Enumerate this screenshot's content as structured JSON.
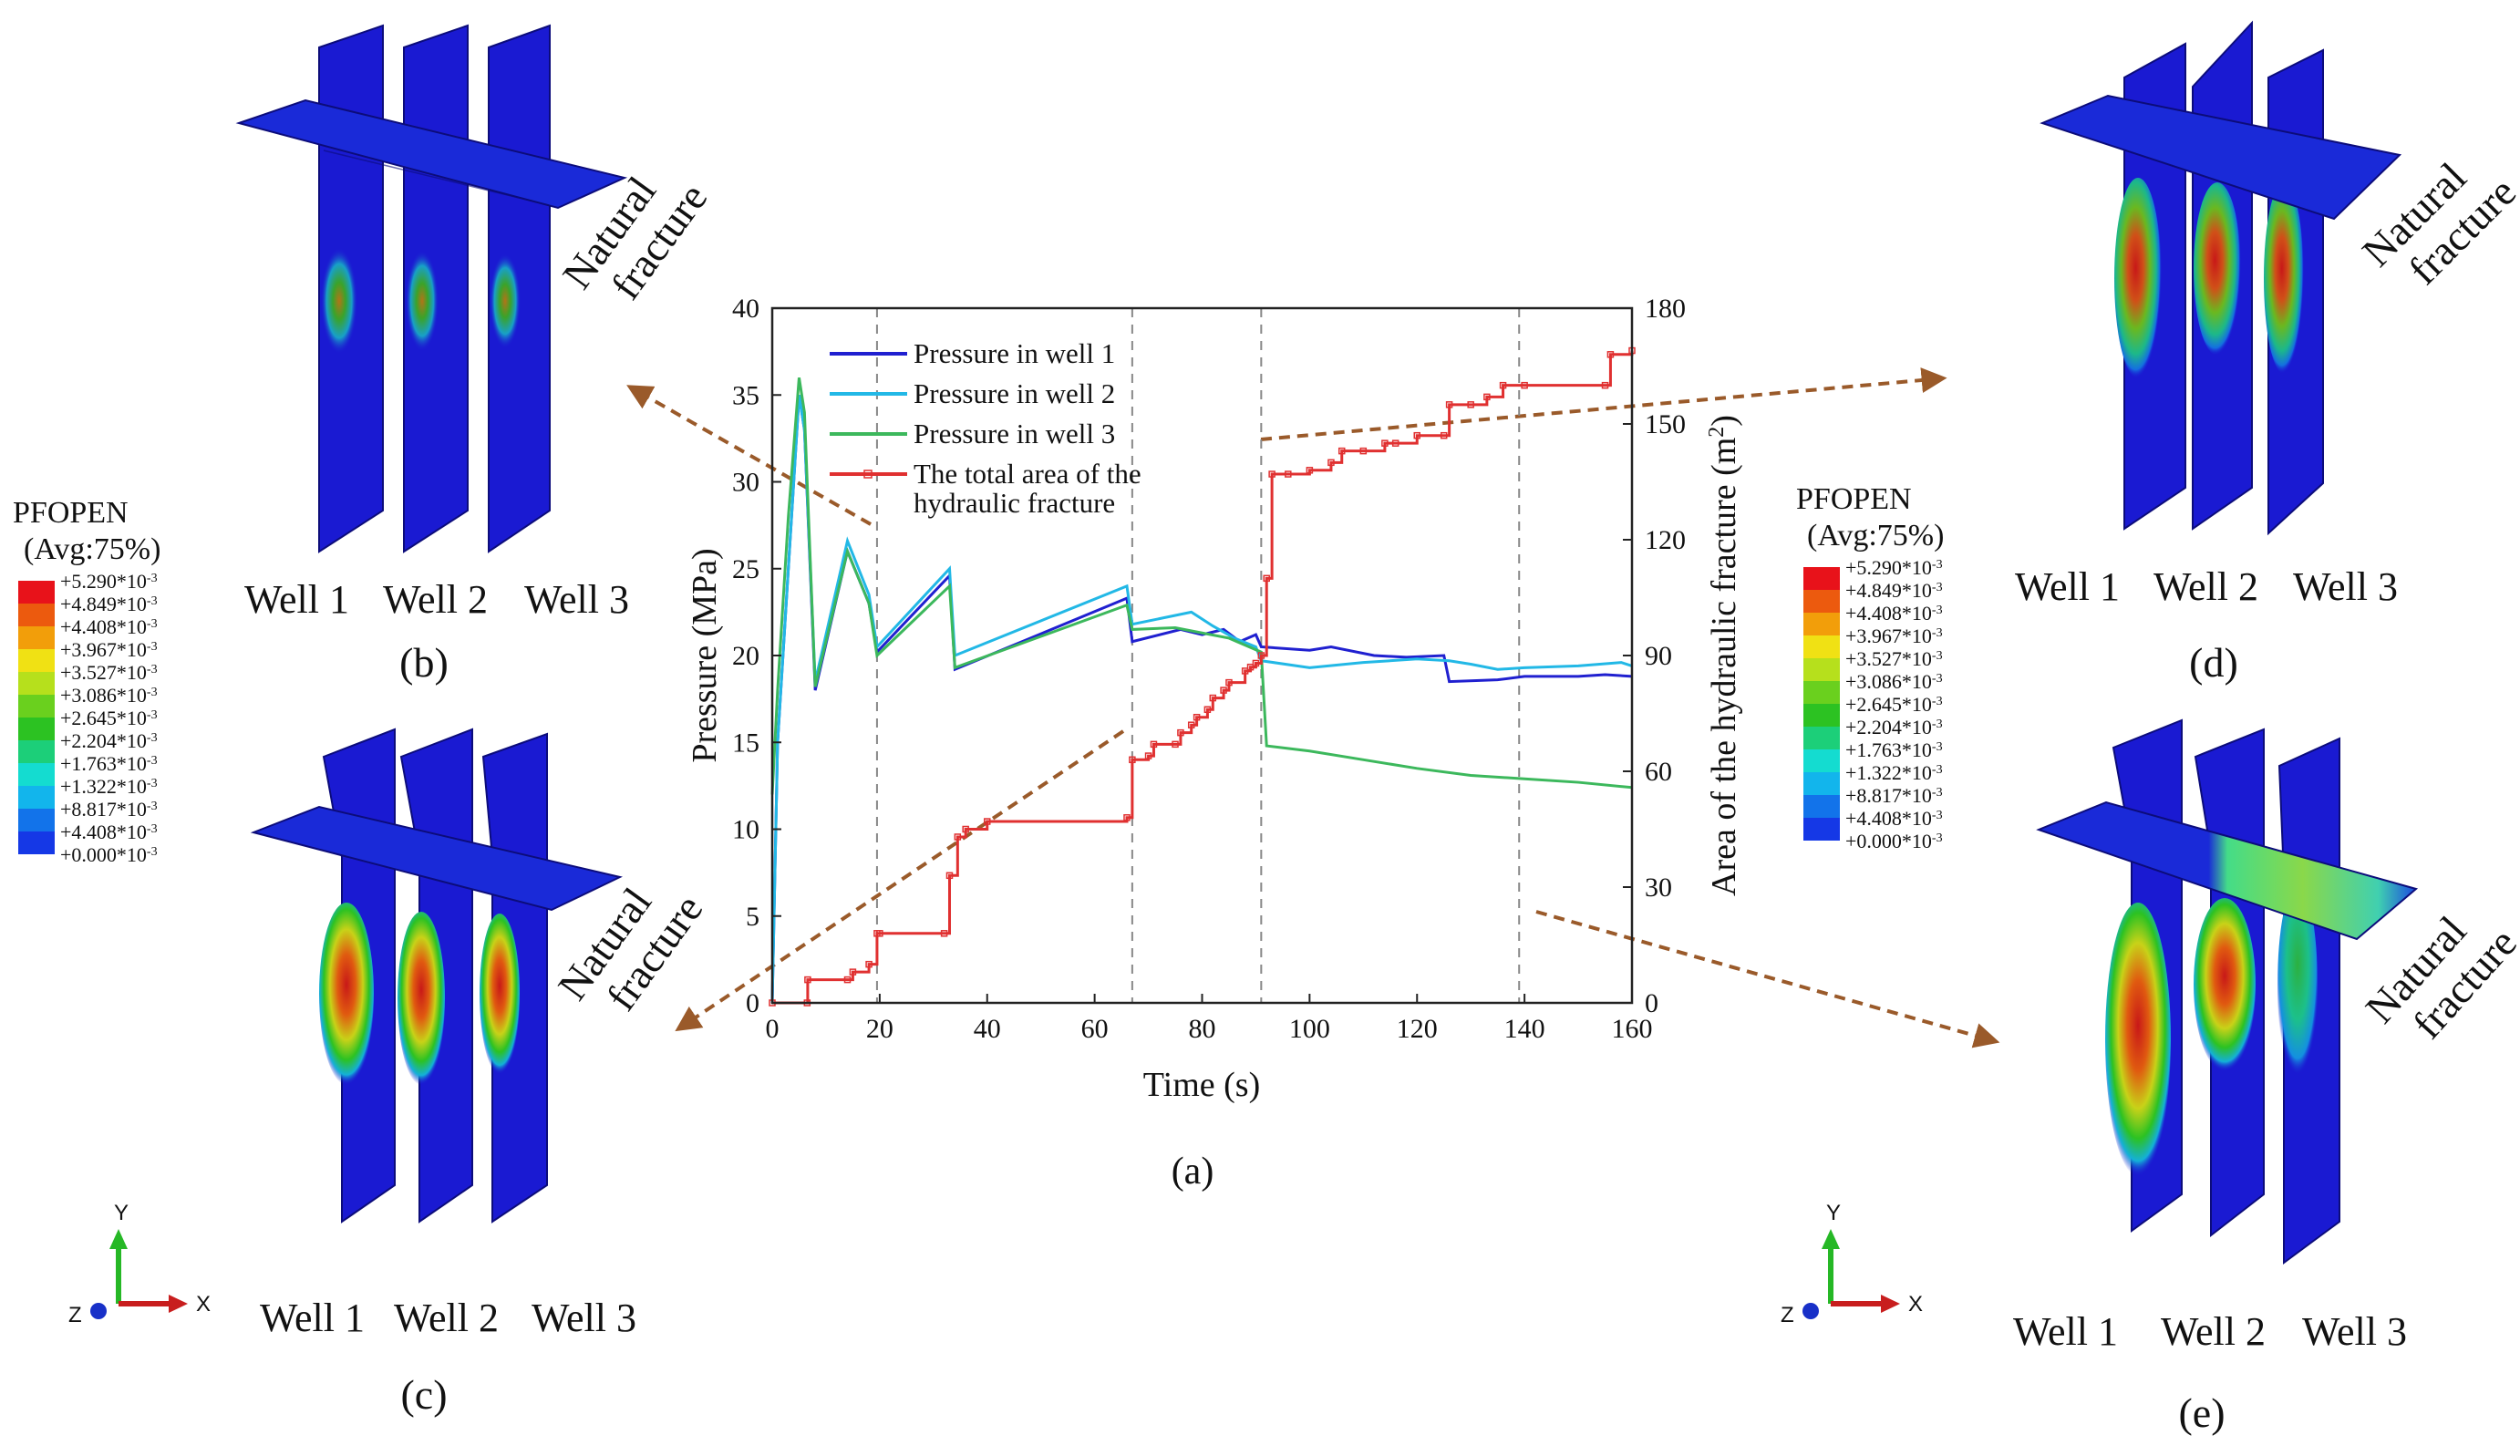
{
  "legend_box": {
    "title": "PFOPEN",
    "subtitle": "(Avg:75%)",
    "entries": [
      "+5.290*10",
      "+4.849*10",
      "+4.408*10",
      "+3.967*10",
      "+3.527*10",
      "+3.086*10",
      "+2.645*10",
      "+2.204*10",
      "+1.763*10",
      "+1.322*10",
      "+8.817*10",
      "+4.408*10",
      "+0.000*10"
    ],
    "exponent": "-3",
    "colors": [
      "#e8121a",
      "#ec5a0e",
      "#f29e0a",
      "#f0e114",
      "#b6e01c",
      "#6ad01e",
      "#2cc222",
      "#1ccf79",
      "#14dcd0",
      "#12b5ec",
      "#1273ea",
      "#1538e6",
      "#1f12dc"
    ]
  },
  "panels": {
    "b": {
      "caption": "(b)",
      "well_labels": [
        "Well 1",
        "Well 2",
        "Well 3"
      ],
      "nf_label": [
        "Natural",
        "fracture"
      ]
    },
    "c": {
      "caption": "(c)",
      "well_labels": [
        "Well 1",
        "Well 2",
        "Well 3"
      ],
      "nf_label": [
        "Natural",
        "fracture"
      ]
    },
    "d": {
      "caption": "(d)",
      "well_labels": [
        "Well 1",
        "Well 2",
        "Well 3"
      ],
      "nf_label": [
        "Natural",
        "fracture"
      ]
    },
    "e": {
      "caption": "(e)",
      "well_labels": [
        "Well 1",
        "Well 2",
        "Well 3"
      ],
      "nf_label": [
        "Natural",
        "fracture"
      ]
    }
  },
  "axis_triad": {
    "y": "Y",
    "x": "X",
    "z": "Z"
  },
  "colors": {
    "frac_blue": "#1a1ad2",
    "frac_edge": "#0c0c7a",
    "arrow": "#9a5a2a",
    "well1": "#2020d0",
    "well2": "#22b8e6",
    "well3": "#3cb85c",
    "area": "#e03030"
  },
  "chart_caption": "(a)",
  "chart_data": {
    "type": "line",
    "xlabel": "Time (s)",
    "ylabel": "Pressure (MPa)",
    "y2label": "Area of the hydraulic fracture (m",
    "y2label_sup": "2",
    "y2label_end": ")",
    "xlim": [
      0,
      160
    ],
    "ylim": [
      0,
      40
    ],
    "y2lim": [
      0,
      180
    ],
    "xticks": [
      0,
      20,
      40,
      60,
      80,
      100,
      120,
      140,
      160
    ],
    "yticks": [
      0,
      5,
      10,
      15,
      20,
      25,
      30,
      35,
      40
    ],
    "y2ticks": [
      0,
      30,
      60,
      90,
      120,
      150,
      180
    ],
    "vlines": [
      19.5,
      67,
      91,
      139
    ],
    "legend": [
      "Pressure in well 1",
      "Pressure in well 2",
      "Pressure in well 3",
      "The total area of the",
      "hydraulic fracture"
    ],
    "series": [
      {
        "name": "Pressure in well 1",
        "axis": "left",
        "x": [
          0,
          1,
          3,
          5,
          6,
          8,
          14,
          18,
          19.5,
          33,
          34,
          66,
          67,
          76,
          80,
          84,
          87,
          90,
          91,
          100,
          104,
          112,
          118,
          125,
          126,
          135,
          140,
          150,
          155,
          160
        ],
        "y": [
          0,
          15,
          25,
          35,
          33,
          18,
          26,
          23,
          20.2,
          24.6,
          19.2,
          23.3,
          20.8,
          21.5,
          21.2,
          21.5,
          20.8,
          21.2,
          20.5,
          20.3,
          20.5,
          20.0,
          19.9,
          20.0,
          18.5,
          18.6,
          18.8,
          18.8,
          18.9,
          18.8
        ]
      },
      {
        "name": "Pressure in well 2",
        "axis": "left",
        "x": [
          0,
          1,
          3,
          5,
          6,
          8,
          14,
          18,
          19.5,
          33,
          34,
          66,
          67,
          78,
          82,
          86,
          90,
          91,
          100,
          110,
          120,
          126,
          130,
          135,
          140,
          150,
          158,
          160
        ],
        "y": [
          0,
          15,
          25,
          35,
          33,
          18.5,
          26.6,
          23.5,
          20.5,
          25.0,
          20.0,
          24.0,
          21.8,
          22.5,
          21.7,
          21.0,
          20.5,
          19.7,
          19.3,
          19.6,
          19.8,
          19.7,
          19.5,
          19.2,
          19.3,
          19.4,
          19.6,
          19.4
        ]
      },
      {
        "name": "Pressure in well 3",
        "axis": "left",
        "x": [
          0,
          1,
          3,
          5,
          6,
          8,
          14,
          18,
          19.5,
          33,
          34,
          66,
          67,
          75,
          80,
          85,
          88,
          91,
          92,
          100,
          110,
          120,
          130,
          140,
          150,
          160
        ],
        "y": [
          12,
          18,
          28,
          36,
          34,
          18.2,
          26.0,
          23.0,
          20.0,
          24.0,
          19.3,
          22.9,
          21.5,
          21.6,
          21.3,
          21.0,
          20.6,
          20.2,
          14.8,
          14.5,
          14.0,
          13.5,
          13.1,
          12.9,
          12.7,
          12.4
        ]
      },
      {
        "name": "The total area of the hydraulic fracture",
        "axis": "right",
        "x": [
          0,
          6.5,
          6.6,
          14,
          15,
          18,
          19.5,
          20,
          32,
          33,
          34.5,
          36,
          40,
          66,
          67,
          70,
          71,
          75,
          76,
          78,
          79,
          81,
          82,
          84,
          85,
          88,
          89,
          90,
          91,
          92,
          93,
          96,
          100,
          104,
          106,
          110,
          114,
          116,
          120,
          125,
          126,
          130,
          133,
          136,
          140,
          155,
          156,
          160
        ],
        "y": [
          0,
          0,
          6,
          6,
          8,
          10,
          18,
          18,
          18,
          33,
          43,
          45,
          47,
          48,
          63,
          64,
          67,
          67,
          70,
          72,
          74,
          76,
          79,
          81,
          83,
          86,
          87,
          88,
          90,
          110,
          137,
          137,
          138,
          140,
          143,
          143,
          145,
          145,
          147,
          147,
          155,
          155,
          157,
          160,
          160,
          160,
          168,
          169
        ]
      }
    ]
  }
}
